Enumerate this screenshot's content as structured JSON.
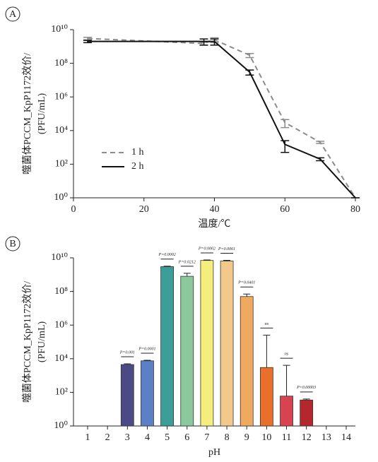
{
  "chart_data": [
    {
      "type": "line",
      "panel_label": "A",
      "x_label": "温度/℃",
      "y_label": [
        "噬菌体PCCM_KpP1172效价/",
        "(PFU/mL)"
      ],
      "x": [
        4,
        37,
        40,
        50,
        60,
        70,
        80
      ],
      "series": [
        {
          "name": "1 h",
          "color": "#8c8c8c",
          "line_style": "dashed",
          "values": [
            3000000000,
            1500000000,
            2500000000,
            300000000,
            30000,
            2000,
            1
          ],
          "errors": [
            500000000,
            300000000,
            800000000,
            80000000,
            15000,
            300,
            0
          ]
        },
        {
          "name": "2 h",
          "color": "#111111",
          "line_style": "solid",
          "values": [
            2000000000,
            2000000000,
            2000000000,
            30000000,
            1500,
            200,
            1
          ],
          "errors": [
            300000000,
            800000000,
            800000000,
            10000000,
            1000,
            40,
            0
          ]
        }
      ],
      "log_y": true,
      "legend": "center left",
      "xlim": [
        0,
        80
      ],
      "xticks": [
        0,
        20,
        40,
        60,
        80
      ],
      "ylim": [
        1,
        10000000000
      ],
      "yticks": [
        {
          "value": 1,
          "label": "10⁰"
        },
        {
          "value": 100,
          "label": "10²"
        },
        {
          "value": 10000,
          "label": "10⁴"
        },
        {
          "value": 1000000,
          "label": "10⁶"
        },
        {
          "value": 100000000,
          "label": "10⁸"
        },
        {
          "value": 10000000000,
          "label": "10¹⁰"
        }
      ]
    },
    {
      "type": "bar",
      "panel_label": "B",
      "x_label": "pH",
      "y_label": [
        "噬菌体PCCM_KpP1172效价/",
        "(PFU/mL)"
      ],
      "categories": [
        "1",
        "2",
        "3",
        "4",
        "5",
        "6",
        "7",
        "8",
        "9",
        "10",
        "11",
        "12",
        "13",
        "14"
      ],
      "values": [
        null,
        null,
        4500,
        7500,
        3000000000,
        800000000,
        7000000000,
        6500000000,
        50000000,
        3000,
        60,
        35,
        null,
        null
      ],
      "errors": [
        null,
        null,
        500,
        600,
        200000000,
        400000000,
        500000000,
        600000000,
        20000000,
        250000,
        4000,
        5,
        null,
        null
      ],
      "colors": [
        null,
        null,
        "#4b4a86",
        "#5b80c6",
        "#3d9d97",
        "#8bc89b",
        "#f4ef7c",
        "#f2c98b",
        "#f0a961",
        "#e8702a",
        "#d8434f",
        "#b3272d",
        null,
        null
      ],
      "annotations": [
        null,
        null,
        "P=0.001",
        "P=0.0001",
        "P=0.0002",
        "P=0.0212",
        "P=0.0002",
        "P=0.0061",
        "P=0.0401",
        "ns",
        "ns",
        "P=0.00003",
        null,
        null
      ],
      "log_y": true,
      "ylim": [
        1,
        10000000000
      ],
      "yticks": [
        {
          "value": 1,
          "label": "10⁰"
        },
        {
          "value": 100,
          "label": "10²"
        },
        {
          "value": 10000,
          "label": "10⁴"
        },
        {
          "value": 1000000,
          "label": "10⁶"
        },
        {
          "value": 100000000,
          "label": "10⁸"
        },
        {
          "value": 10000000000,
          "label": "10¹⁰"
        }
      ]
    }
  ]
}
